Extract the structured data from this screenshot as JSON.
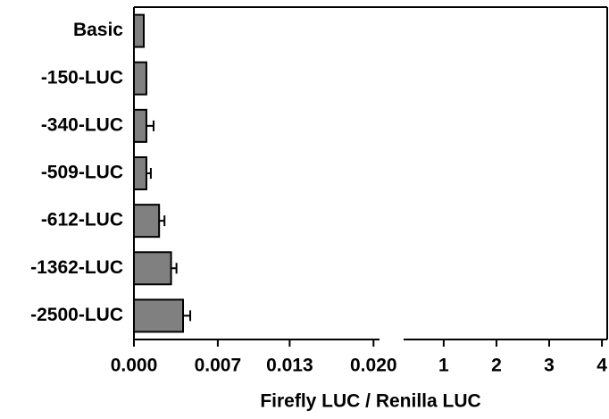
{
  "chart_data": {
    "type": "hbar",
    "categories": [
      "Basic",
      "-150-LUC",
      "-340-LUC",
      "-509-LUC",
      "-612-LUC",
      "-1362-LUC",
      "-2500-LUC"
    ],
    "values": [
      0.00082,
      0.00104,
      0.00104,
      0.00104,
      0.0021,
      0.0031,
      0.0041
    ],
    "errors": [
      0,
      0,
      0.0006,
      0.00037,
      0.00045,
      0.00045,
      0.0006
    ],
    "color": "#808080",
    "xlabel": "Firefly LUC / Renilla LUC",
    "xlim": [
      0,
      0.0205
    ],
    "xticks": [
      {
        "value": 0,
        "label": "0.000"
      },
      {
        "value": 0.007,
        "label": "0.007"
      },
      {
        "value": 0.013,
        "label": "0.013"
      },
      {
        "value": 0.02,
        "label": "0.020"
      }
    ],
    "x2lim": [
      0.24,
      4.1
    ],
    "x2ticks": [
      1,
      2,
      3,
      4
    ]
  }
}
